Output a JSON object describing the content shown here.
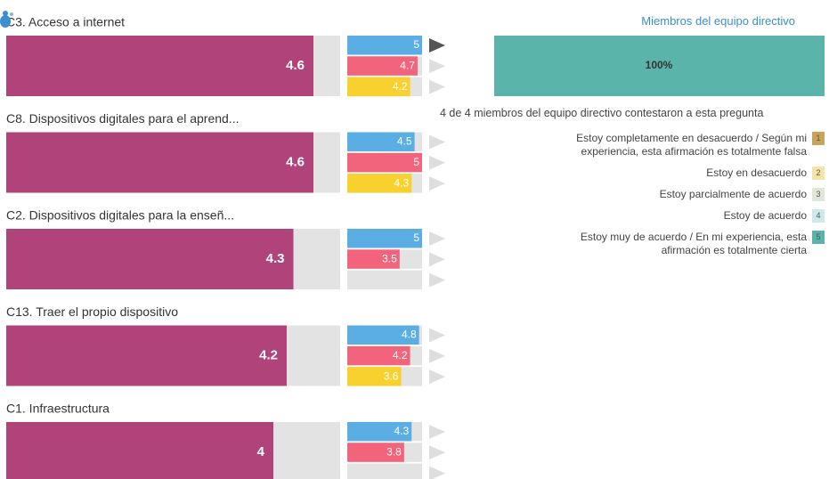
{
  "rows": [
    {
      "label": "C3. Acceso a internet",
      "overall": 4.6,
      "bars": [
        5,
        4.7,
        4.2
      ]
    },
    {
      "label": "C8. Dispositivos digitales para el aprend...",
      "overall": 4.6,
      "bars": [
        4.5,
        5,
        4.3
      ]
    },
    {
      "label": "C2. Dispositivos digitales para la enseñ...",
      "overall": 4.3,
      "bars": [
        5,
        3.5,
        null
      ]
    },
    {
      "label": "C13. Traer el propio dispositivo",
      "overall": 4.2,
      "bars": [
        4.8,
        4.2,
        3.6
      ]
    },
    {
      "label": "C1. Infraestructura",
      "overall": 4,
      "bars": [
        4.3,
        3.8,
        null
      ]
    }
  ],
  "xlim": [
    0,
    5
  ],
  "bar_colors": [
    "#5aaee3",
    "#f2637c",
    "#f8d12f"
  ],
  "overall_color": "#b0447a",
  "panel": {
    "title": "Miembros del equipo directivo",
    "share": 100,
    "share_label": "100%",
    "share_color": "#5bb4a9",
    "note": "4 de 4 miembros del equipo directivo contestaron a esta pregunta",
    "legend": [
      {
        "label": "Estoy completamente en desacuerdo / Según mi experiencia, esta afirmación es totalmente falsa",
        "number": 1,
        "color": "#c9a35a"
      },
      {
        "label": "Estoy en desacuerdo",
        "number": 2,
        "color": "#f6e3a6"
      },
      {
        "label": "Estoy parcialmente de acuerdo",
        "number": 3,
        "color": "#dfe8d7"
      },
      {
        "label": "Estoy de acuerdo",
        "number": 4,
        "color": "#cde9ea"
      },
      {
        "label": "Estoy muy de acuerdo / En mi experiencia, esta afirmación es totalmente cierta",
        "number": 5,
        "color": "#5bb4a9"
      }
    ]
  }
}
